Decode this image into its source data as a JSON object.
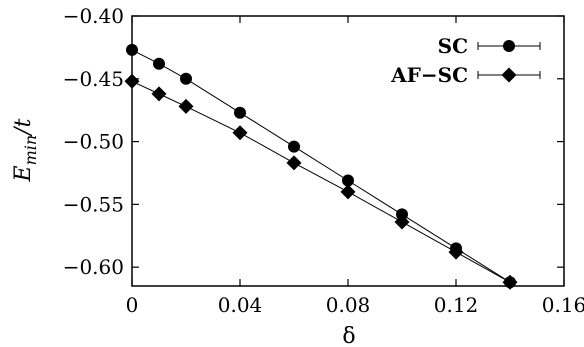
{
  "chart_data": {
    "type": "line",
    "xlabel": "δ",
    "ylabel_main": "E",
    "ylabel_sub": "min",
    "ylabel_tail": "/t",
    "xlim": [
      0,
      0.16
    ],
    "ylim": [
      -0.615,
      -0.4
    ],
    "x_ticks": [
      0,
      0.04,
      0.08,
      0.12,
      0.16
    ],
    "x_tick_labels": [
      "0",
      "0.04",
      "0.08",
      "0.12",
      "0.16"
    ],
    "y_ticks": [
      -0.4,
      -0.45,
      -0.5,
      -0.55,
      -0.6
    ],
    "y_tick_labels": [
      "−0.40",
      "−0.45",
      "−0.50",
      "−0.55",
      "−0.60"
    ],
    "grid": false,
    "legend_position": "top-right",
    "series": [
      {
        "name": "SC",
        "marker": "circle",
        "color": "#000000",
        "x": [
          0,
          0.01,
          0.02,
          0.04,
          0.06,
          0.08,
          0.1,
          0.12,
          0.14
        ],
        "y": [
          -0.427,
          -0.438,
          -0.45,
          -0.477,
          -0.504,
          -0.531,
          -0.558,
          -0.585,
          -0.612
        ]
      },
      {
        "name": "AF−SC",
        "marker": "diamond",
        "color": "#000000",
        "x": [
          0,
          0.01,
          0.02,
          0.04,
          0.06,
          0.08,
          0.1,
          0.12,
          0.14
        ],
        "y": [
          -0.452,
          -0.462,
          -0.472,
          -0.493,
          -0.517,
          -0.54,
          -0.564,
          -0.588,
          -0.612
        ]
      }
    ]
  }
}
